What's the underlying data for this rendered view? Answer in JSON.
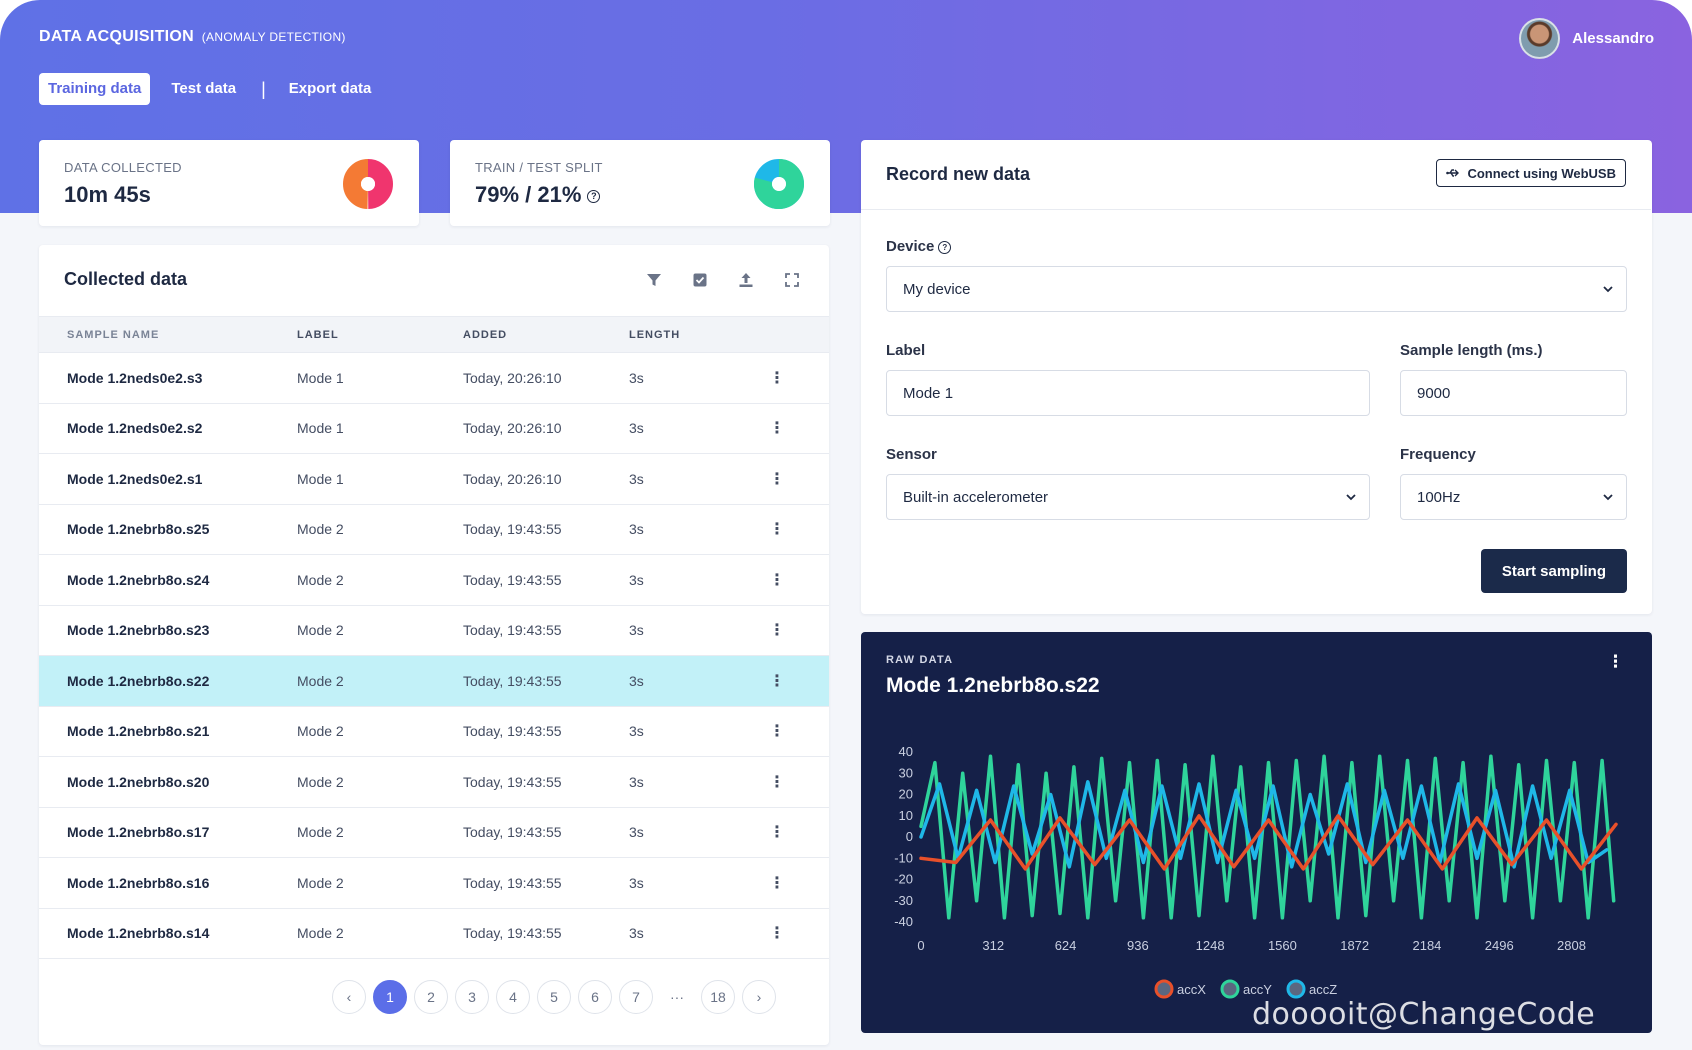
{
  "header": {
    "title": "DATA ACQUISITION",
    "subtitle": "(ANOMALY DETECTION)",
    "user_name": "Alessandro"
  },
  "tabs": [
    {
      "label": "Training data",
      "active": true
    },
    {
      "label": "Test data",
      "active": false
    },
    {
      "label": "Export data",
      "active": false
    }
  ],
  "stats": {
    "collected": {
      "label": "DATA COLLECTED",
      "value": "10m 45s"
    },
    "split": {
      "label": "TRAIN / TEST SPLIT",
      "value": "79% / 21%",
      "train_fraction": 0.79
    }
  },
  "collected_panel": {
    "title": "Collected data",
    "icons": [
      "filter-icon",
      "checkbox-icon",
      "upload-icon",
      "expand-icon"
    ],
    "columns": [
      "SAMPLE NAME",
      "LABEL",
      "ADDED",
      "LENGTH"
    ],
    "rows": [
      {
        "name": "Mode 1.2neds0e2.s3",
        "label": "Mode 1",
        "added": "Today, 20:26:10",
        "length": "3s"
      },
      {
        "name": "Mode 1.2neds0e2.s2",
        "label": "Mode 1",
        "added": "Today, 20:26:10",
        "length": "3s"
      },
      {
        "name": "Mode 1.2neds0e2.s1",
        "label": "Mode 1",
        "added": "Today, 20:26:10",
        "length": "3s"
      },
      {
        "name": "Mode 1.2nebrb8o.s25",
        "label": "Mode 2",
        "added": "Today, 19:43:55",
        "length": "3s"
      },
      {
        "name": "Mode 1.2nebrb8o.s24",
        "label": "Mode 2",
        "added": "Today, 19:43:55",
        "length": "3s"
      },
      {
        "name": "Mode 1.2nebrb8o.s23",
        "label": "Mode 2",
        "added": "Today, 19:43:55",
        "length": "3s"
      },
      {
        "name": "Mode 1.2nebrb8o.s22",
        "label": "Mode 2",
        "added": "Today, 19:43:55",
        "length": "3s",
        "selected": true
      },
      {
        "name": "Mode 1.2nebrb8o.s21",
        "label": "Mode 2",
        "added": "Today, 19:43:55",
        "length": "3s"
      },
      {
        "name": "Mode 1.2nebrb8o.s20",
        "label": "Mode 2",
        "added": "Today, 19:43:55",
        "length": "3s"
      },
      {
        "name": "Mode 1.2nebrb8o.s17",
        "label": "Mode 2",
        "added": "Today, 19:43:55",
        "length": "3s"
      },
      {
        "name": "Mode 1.2nebrb8o.s16",
        "label": "Mode 2",
        "added": "Today, 19:43:55",
        "length": "3s"
      },
      {
        "name": "Mode 1.2nebrb8o.s14",
        "label": "Mode 2",
        "added": "Today, 19:43:55",
        "length": "3s"
      }
    ],
    "pagination": {
      "pages": [
        "1",
        "2",
        "3",
        "4",
        "5",
        "6",
        "7",
        "···",
        "18"
      ],
      "current": "1"
    }
  },
  "record": {
    "title": "Record new data",
    "webusb_label": "Connect using WebUSB",
    "device_label": "Device",
    "device_value": "My device",
    "label_label": "Label",
    "label_value": "Mode 1",
    "sample_length_label": "Sample length (ms.)",
    "sample_length_value": "9000",
    "sensor_label": "Sensor",
    "sensor_value": "Built-in accelerometer",
    "frequency_label": "Frequency",
    "frequency_value": "100Hz",
    "start_label": "Start sampling"
  },
  "raw_data": {
    "label": "RAW DATA",
    "title": "Mode 1.2nebrb8o.s22",
    "watermark": "dooooit@ChangeCode"
  },
  "chart_data": {
    "type": "line",
    "ylim": [
      -40,
      40
    ],
    "xlim": [
      0,
      3000
    ],
    "y_ticks": [
      40,
      30,
      20,
      10,
      0,
      -10,
      -20,
      -30,
      -40
    ],
    "x_ticks": [
      0,
      312,
      624,
      936,
      1248,
      1560,
      1872,
      2184,
      2496,
      2808
    ],
    "legend_position": "bottom",
    "grid": false,
    "series": [
      {
        "name": "accX",
        "color": "#e8502a",
        "x": [
          0,
          150,
          300,
          450,
          600,
          750,
          900,
          1050,
          1200,
          1350,
          1500,
          1650,
          1800,
          1950,
          2100,
          2250,
          2400,
          2550,
          2700,
          2850,
          3000
        ],
        "values": [
          -10,
          -12,
          8,
          -15,
          9,
          -13,
          8,
          -15,
          10,
          -14,
          8,
          -15,
          10,
          -13,
          8,
          -15,
          9,
          -13,
          8,
          -15,
          6
        ]
      },
      {
        "name": "accY",
        "color": "#2fd49b",
        "x": [
          0,
          60,
          120,
          180,
          240,
          300,
          360,
          420,
          480,
          540,
          600,
          660,
          720,
          780,
          840,
          900,
          960,
          1020,
          1080,
          1140,
          1200,
          1260,
          1320,
          1380,
          1440,
          1500,
          1560,
          1620,
          1680,
          1740,
          1800,
          1860,
          1920,
          1980,
          2040,
          2100,
          2160,
          2220,
          2280,
          2340,
          2400,
          2460,
          2520,
          2580,
          2640,
          2700,
          2760,
          2820,
          2880,
          2940,
          2990
        ],
        "values": [
          5,
          35,
          -38,
          30,
          -30,
          38,
          -38,
          34,
          -37,
          30,
          -36,
          33,
          -38,
          37,
          -30,
          35,
          -38,
          36,
          -38,
          34,
          -37,
          38,
          -30,
          33,
          -38,
          35,
          -38,
          36,
          -30,
          38,
          -38,
          35,
          -37,
          38,
          -30,
          36,
          -38,
          37,
          -30,
          35,
          -38,
          38,
          -30,
          34,
          -38,
          36,
          -30,
          35,
          -38,
          36,
          -30
        ]
      },
      {
        "name": "accZ",
        "color": "#1fb8e8",
        "x": [
          0,
          80,
          160,
          240,
          320,
          400,
          480,
          560,
          640,
          720,
          800,
          880,
          960,
          1040,
          1120,
          1200,
          1280,
          1360,
          1440,
          1520,
          1600,
          1680,
          1760,
          1840,
          1920,
          2000,
          2080,
          2160,
          2240,
          2320,
          2400,
          2480,
          2560,
          2640,
          2720,
          2800,
          2880,
          2960
        ],
        "values": [
          0,
          25,
          -10,
          22,
          -12,
          24,
          -8,
          20,
          -14,
          26,
          -10,
          22,
          -12,
          24,
          -10,
          25,
          -12,
          22,
          -10,
          24,
          -14,
          20,
          -8,
          25,
          -12,
          22,
          -10,
          24,
          -12,
          25,
          -10,
          22,
          -14,
          24,
          -10,
          22,
          -12,
          -6
        ]
      }
    ]
  }
}
